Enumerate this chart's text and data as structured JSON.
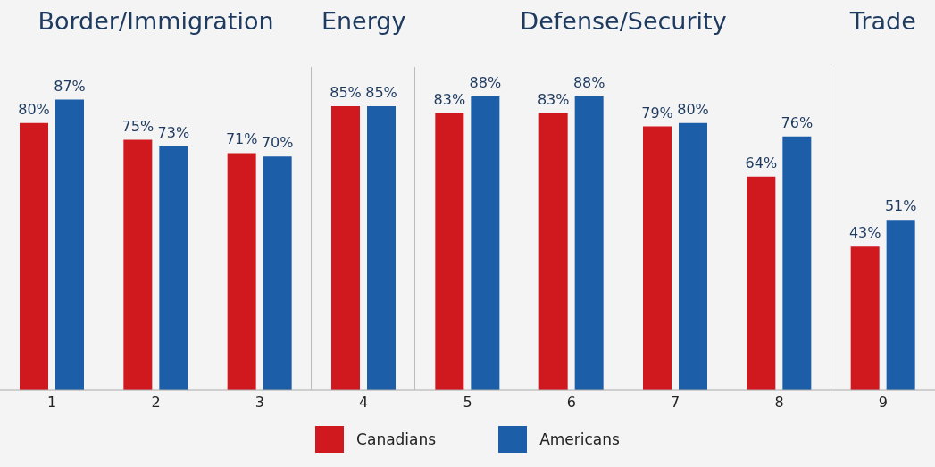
{
  "chart_data": {
    "type": "bar",
    "categories": [
      "1",
      "2",
      "3",
      "4",
      "5",
      "6",
      "7",
      "8",
      "9"
    ],
    "series": [
      {
        "name": "Canadians",
        "color": "#d0191f",
        "values": [
          80,
          75,
          71,
          85,
          83,
          83,
          79,
          64,
          43
        ],
        "value_labels": [
          "80%",
          "75%",
          "71%",
          "85%",
          "83%",
          "83%",
          "79%",
          "64%",
          "43%"
        ]
      },
      {
        "name": "Americans",
        "color": "#1c5ea8",
        "values": [
          87,
          73,
          70,
          85,
          88,
          88,
          80,
          76,
          51
        ],
        "value_labels": [
          "87%",
          "73%",
          "70%",
          "85%",
          "88%",
          "88%",
          "80%",
          "76%",
          "51%"
        ]
      }
    ],
    "annotations": [
      "Border/Immigration",
      "Energy",
      "Defense/Security",
      "Trade"
    ],
    "legend": "bottom",
    "grid": false
  }
}
